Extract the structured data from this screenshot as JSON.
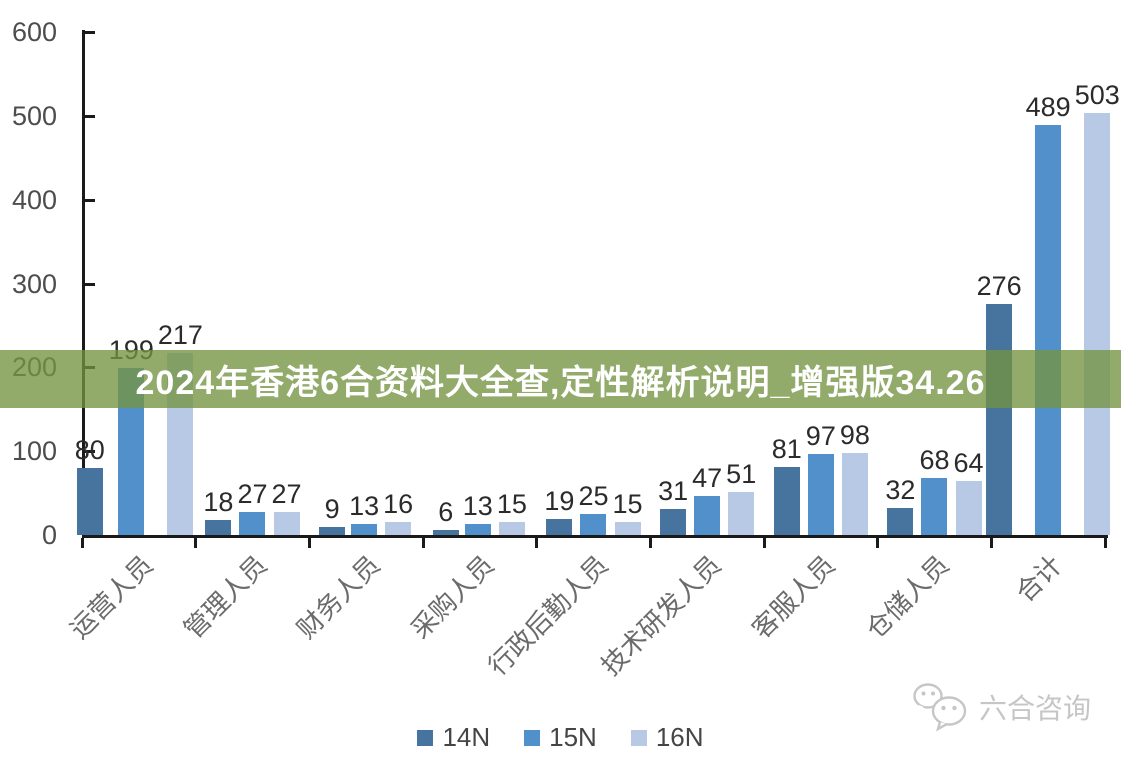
{
  "banner": {
    "text": "2024年香港6合资料大全查,定性解析说明_增强版34.26",
    "bg_color": "#739441",
    "overlay_alpha": 0.78,
    "text_color": "#ffffff"
  },
  "chart_data": {
    "type": "bar",
    "title": "",
    "categories": [
      "运营人员",
      "管理人员",
      "财务人员",
      "采购人员",
      "行政后勤人员",
      "技术研发人员",
      "客服人员",
      "仓储人员",
      "合计"
    ],
    "series": [
      {
        "name": "14N",
        "color": "#47749f",
        "values": [
          80,
          18,
          9,
          6,
          19,
          31,
          81,
          32,
          276
        ]
      },
      {
        "name": "15N",
        "color": "#5190cb",
        "values": [
          199,
          27,
          13,
          13,
          25,
          47,
          97,
          68,
          489
        ]
      },
      {
        "name": "16N",
        "color": "#b7c9e5",
        "values": [
          217,
          27,
          16,
          15,
          15,
          51,
          98,
          64,
          503
        ]
      }
    ],
    "ylim": [
      0,
      600
    ],
    "yticks": [
      0,
      100,
      200,
      300,
      400,
      500,
      600
    ],
    "grid": false,
    "legend_position": "bottom",
    "bar_value_labels": true
  },
  "watermark": {
    "text": "六合咨询",
    "icon": "wechat-chat-bubbles-icon",
    "color": "#c6c6c6"
  },
  "colors": {
    "axis": "#1a1a1a",
    "axis_labels": "#4d4d4d",
    "value_labels": "#2b2b2b",
    "category_labels": "#6b6b6b",
    "legend_text": "#454545",
    "background": "#ffffff"
  }
}
